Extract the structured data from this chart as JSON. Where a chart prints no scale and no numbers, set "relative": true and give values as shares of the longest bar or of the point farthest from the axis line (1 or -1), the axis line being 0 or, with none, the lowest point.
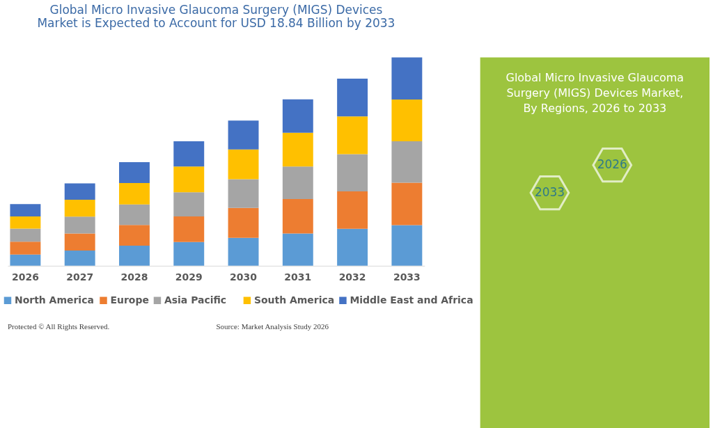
{
  "chart_data": {
    "type": "bar",
    "title": "Global Micro Invasive Glaucoma Surgery (MIGS) Devices\nMarket is Expected to Account for USD 18.84 Billion by 2033",
    "categories": [
      "2026",
      "2027",
      "2028",
      "2029",
      "2030",
      "2031",
      "2032",
      "2033"
    ],
    "stacked": true,
    "relative": true,
    "legend": "bottom",
    "grid": false,
    "series": [
      {
        "name": "North America",
        "color": "#5b9bd5",
        "values": [
          0.054,
          0.073,
          0.096,
          0.114,
          0.134,
          0.155,
          0.177,
          0.195
        ]
      },
      {
        "name": "Europe",
        "color": "#ed7d31",
        "values": [
          0.062,
          0.082,
          0.1,
          0.123,
          0.144,
          0.165,
          0.18,
          0.204
        ]
      },
      {
        "name": "Asia Pacific",
        "color": "#a5a5a5",
        "values": [
          0.062,
          0.081,
          0.098,
          0.116,
          0.137,
          0.156,
          0.179,
          0.198
        ]
      },
      {
        "name": "South America",
        "color": "#ffc000",
        "values": [
          0.059,
          0.081,
          0.103,
          0.123,
          0.143,
          0.162,
          0.181,
          0.201
        ]
      },
      {
        "name": "Middle East and Africa",
        "color": "#4472c4",
        "values": [
          0.059,
          0.078,
          0.1,
          0.121,
          0.139,
          0.161,
          0.181,
          0.202
        ]
      }
    ],
    "annotations": [
      "Global Micro Invasive Glaucoma Surgery (MIGS) Devices Market, By Regions, 2026 to 2033",
      "2026",
      "2033",
      "Protected © All Rights Reserved.",
      "Source: Market Analysis Study 2026"
    ]
  }
}
